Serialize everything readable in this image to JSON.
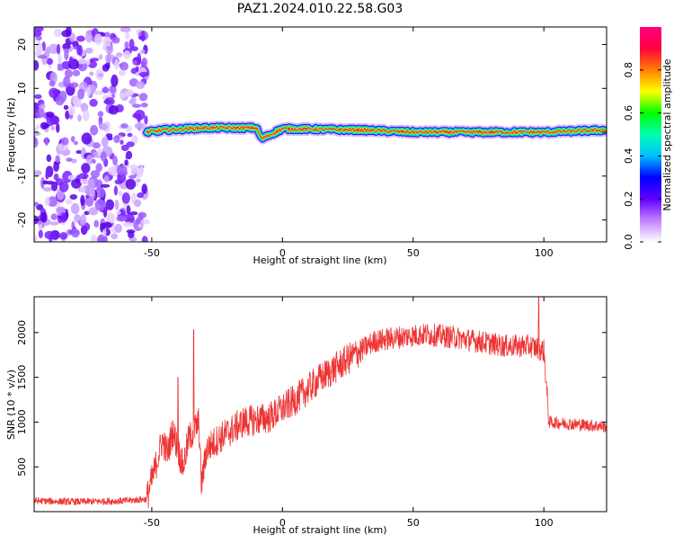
{
  "title": "PAZ1.2024.010.22.58.G03",
  "chart_data": [
    {
      "type": "heatmap",
      "xlabel": "Height of straight line (km)",
      "ylabel": "Frequency (Hz)",
      "xlim": [
        -95,
        124
      ],
      "ylim": [
        -25,
        24
      ],
      "x_ticks": [
        -50,
        0,
        50,
        100
      ],
      "y_ticks": [
        -20,
        -10,
        0,
        10,
        20
      ],
      "colorbar": {
        "label": "Normalized spectral amplitude",
        "range": [
          0,
          1
        ],
        "ticks": [
          0.0,
          0.2,
          0.4,
          0.6,
          0.8
        ],
        "colors": [
          "#ffffff",
          "#c080ff",
          "#6000ff",
          "#0000ff",
          "#00c0ff",
          "#00ffb0",
          "#00ff00",
          "#ffff00",
          "#ff8000",
          "#ff0040",
          "#ff0080"
        ]
      },
      "noise_region_x": [
        -95,
        -52
      ],
      "signal_track": [
        {
          "x": -52,
          "freq": 0.0
        },
        {
          "x": -45,
          "freq": 0.5
        },
        {
          "x": -30,
          "freq": 1.0
        },
        {
          "x": -10,
          "freq": 1.0
        },
        {
          "x": -8,
          "freq": -1.5
        },
        {
          "x": 0,
          "freq": 0.8
        },
        {
          "x": 30,
          "freq": 0.5
        },
        {
          "x": 50,
          "freq": 0.0
        },
        {
          "x": 80,
          "freq": 0.0
        },
        {
          "x": 100,
          "freq": 0.0
        },
        {
          "x": 124,
          "freq": 0.5
        }
      ]
    },
    {
      "type": "line",
      "xlabel": "Height of straight line (km)",
      "ylabel": "SNR (10 * v/v)",
      "xlim": [
        -95,
        124
      ],
      "ylim": [
        0,
        2400
      ],
      "x_ticks": [
        -50,
        0,
        50,
        100
      ],
      "y_ticks": [
        500,
        1000,
        1500,
        2000
      ],
      "color": "#ee3333",
      "points": [
        {
          "x": -95,
          "y": 120
        },
        {
          "x": -80,
          "y": 110
        },
        {
          "x": -60,
          "y": 120
        },
        {
          "x": -52,
          "y": 140
        },
        {
          "x": -49,
          "y": 450
        },
        {
          "x": -46,
          "y": 800
        },
        {
          "x": -44,
          "y": 650
        },
        {
          "x": -42,
          "y": 900
        },
        {
          "x": -40,
          "y": 700
        },
        {
          "x": -38,
          "y": 500
        },
        {
          "x": -36,
          "y": 800
        },
        {
          "x": -34,
          "y": 900
        },
        {
          "x": -32,
          "y": 1000
        },
        {
          "x": -31,
          "y": 300
        },
        {
          "x": -29,
          "y": 700
        },
        {
          "x": -25,
          "y": 800
        },
        {
          "x": -15,
          "y": 1000
        },
        {
          "x": -5,
          "y": 1050
        },
        {
          "x": 5,
          "y": 1250
        },
        {
          "x": 15,
          "y": 1500
        },
        {
          "x": 25,
          "y": 1700
        },
        {
          "x": 35,
          "y": 1900
        },
        {
          "x": 45,
          "y": 1950
        },
        {
          "x": 55,
          "y": 1980
        },
        {
          "x": 65,
          "y": 1950
        },
        {
          "x": 75,
          "y": 1900
        },
        {
          "x": 85,
          "y": 1850
        },
        {
          "x": 95,
          "y": 1850
        },
        {
          "x": 100,
          "y": 1800
        },
        {
          "x": 102,
          "y": 1000
        },
        {
          "x": 110,
          "y": 980
        },
        {
          "x": 124,
          "y": 950
        }
      ],
      "spikes": [
        {
          "x": -34,
          "y": 2030
        },
        {
          "x": -40,
          "y": 1500
        },
        {
          "x": 98,
          "y": 2400
        }
      ],
      "noise": [
        {
          "x_from": -95,
          "x_to": -52,
          "amp": 40
        },
        {
          "x_from": -52,
          "x_to": 30,
          "amp": 180
        },
        {
          "x_from": 30,
          "x_to": 102,
          "amp": 130
        },
        {
          "x_from": 102,
          "x_to": 124,
          "amp": 70
        }
      ]
    }
  ]
}
